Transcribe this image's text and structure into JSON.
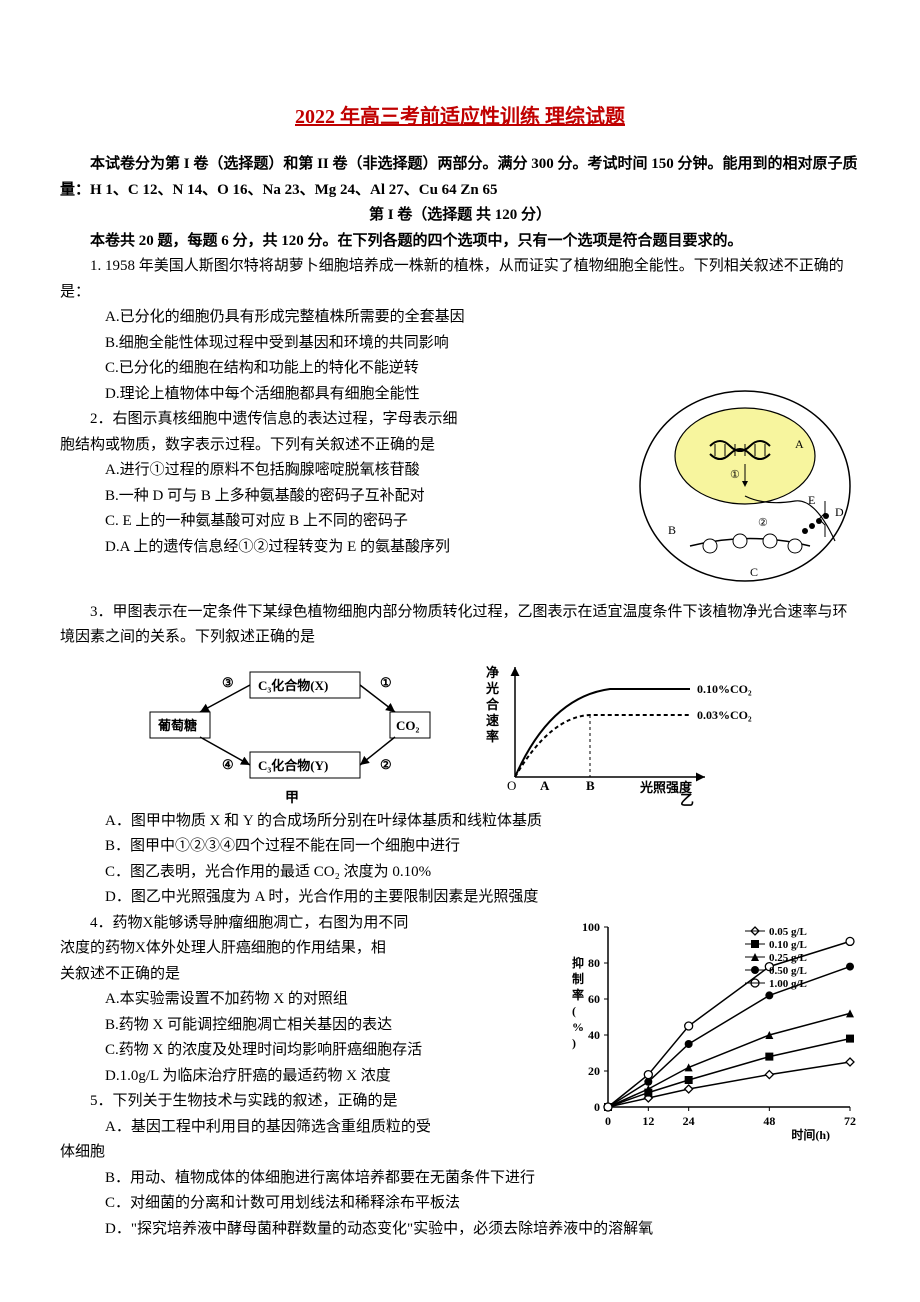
{
  "title": "2022 年高三考前适应性训练 理综试题",
  "intro": "本试卷分为第 I 卷（选择题）和第 II 卷（非选择题）两部分。满分 300 分。考试时间 150 分钟。能用到的相对原子质量：H 1、C 12、N 14、O 16、Na 23、Mg 24、Al 27、Cu 64   Zn 65",
  "subhead": "第 I 卷（选择题   共 120 分）",
  "instr": "本卷共 20 题，每题 6 分，共 120 分。在下列各题的四个选项中，只有一个选项是符合题目要求的。",
  "q1": {
    "stem": "1. 1958 年美国人斯图尔特将胡萝卜细胞培养成一株新的植株，从而证实了植物细胞全能性。下列相关叙述不正确的是：",
    "A": "A.已分化的细胞仍具有形成完整植株所需要的全套基因",
    "B": "B.细胞全能性体现过程中受到基因和环境的共同影响",
    "C": "C.已分化的细胞在结构和功能上的特化不能逆转",
    "D": "D.理论上植物体中每个活细胞都具有细胞全能性"
  },
  "q2": {
    "stem1": "2．右图示真核细胞中遗传信息的表达过程，字母表示细",
    "stem2": "胞结构或物质，数字表示过程。下列有关叙述不正确的是",
    "A": "A.进行①过程的原料不包括胸腺嘧啶脱氧核苷酸",
    "B": "B.一种 D 可与 B 上多种氨基酸的密码子互补配对",
    "C": "C. E 上的一种氨基酸可对应 B 上不同的密码子",
    "D": "D.A 上的遗传信息经①②过程转变为 E 的氨基酸序列"
  },
  "q3": {
    "stem": "3．甲图表示在一定条件下某绿色植物细胞内部分物质转化过程，乙图表示在适宜温度条件下该植物净光合速率与环境因素之间的关系。下列叙述正确的是",
    "A": "A．图甲中物质 X 和 Y 的合成场所分别在叶绿体基质和线粒体基质",
    "B": "B．图甲中①②③④四个过程不能在同一个细胞中进行",
    "C": "C．图乙表明，光合作用的最适 CO₂ 浓度为 0.10%",
    "D": "D．图乙中光照强度为 A 时，光合作用的主要限制因素是光照强度",
    "fig_jia": {
      "boxes": [
        "葡萄糖",
        "C₃化合物(X)",
        "C₃化合物(Y)",
        "CO₂"
      ],
      "arrows": [
        "③",
        "①",
        "④",
        "②"
      ],
      "caption": "甲"
    },
    "fig_yi": {
      "ylabel": "净光合速率",
      "xlabel": "光照强度",
      "xticks": [
        "A",
        "B"
      ],
      "series": [
        "0.10%CO₂",
        "0.03%CO₂"
      ],
      "caption": "乙"
    }
  },
  "q4": {
    "stem1": "4．药物X能够诱导肿瘤细胞凋亡，右图为用不同",
    "stem2": "浓度的药物X体外处理人肝癌细胞的作用结果，相",
    "stem3": "关叙述不正确的是",
    "A": "A.本实验需设置不加药物 X 的对照组",
    "B": "B.药物 X 可能调控细胞凋亡相关基因的表达",
    "C": "C.药物 X 的浓度及处理时间均影响肝癌细胞存活",
    "D": "D.1.0g/L 为临床治疗肝癌的最适药物 X 浓度",
    "chart": {
      "type": "line",
      "xlabel": "时间(h)",
      "ylabel": "抑制率(%)",
      "xticks": [
        0,
        12,
        24,
        48,
        72
      ],
      "yticks": [
        0,
        20,
        40,
        60,
        80,
        100
      ],
      "xlim": [
        0,
        72
      ],
      "ylim": [
        0,
        100
      ],
      "legend_pos": "top-right",
      "background": "#ffffff",
      "axis_color": "#000000",
      "series": [
        {
          "name": "0.05 g/L",
          "marker": "diamond-open",
          "color": "#000000",
          "data": [
            [
              0,
              0
            ],
            [
              12,
              5
            ],
            [
              24,
              10
            ],
            [
              48,
              18
            ],
            [
              72,
              25
            ]
          ]
        },
        {
          "name": "0.10 g/L",
          "marker": "square",
          "color": "#000000",
          "data": [
            [
              0,
              0
            ],
            [
              12,
              8
            ],
            [
              24,
              15
            ],
            [
              48,
              28
            ],
            [
              72,
              38
            ]
          ]
        },
        {
          "name": "0.25 g/L",
          "marker": "triangle",
          "color": "#000000",
          "data": [
            [
              0,
              0
            ],
            [
              12,
              10
            ],
            [
              24,
              22
            ],
            [
              48,
              40
            ],
            [
              72,
              52
            ]
          ]
        },
        {
          "name": "0.50 g/L",
          "marker": "circle",
          "color": "#000000",
          "data": [
            [
              0,
              0
            ],
            [
              12,
              14
            ],
            [
              24,
              35
            ],
            [
              48,
              62
            ],
            [
              72,
              78
            ]
          ]
        },
        {
          "name": "1.00 g/L",
          "marker": "circle-open",
          "color": "#000000",
          "data": [
            [
              0,
              0
            ],
            [
              12,
              18
            ],
            [
              24,
              45
            ],
            [
              48,
              78
            ],
            [
              72,
              92
            ]
          ]
        }
      ]
    }
  },
  "q5": {
    "stem": "5．下列关于生物技术与实践的叙述，正确的是",
    "A1": "A．基因工程中利用目的基因筛选含重组质粒的受",
    "A2": "体细胞",
    "B": "B．用动、植物成体的体细胞进行离体培养都要在无菌条件下进行",
    "C": "C．对细菌的分离和计数可用划线法和稀释涂布平板法",
    "D": "D．\"探究培养液中酵母菌种群数量的动态变化\"实验中，必须去除培养液中的溶解氧"
  },
  "fig2": {
    "labels": [
      "A",
      "B",
      "C",
      "D",
      "E"
    ],
    "nums": [
      "①",
      "②"
    ],
    "nucleus_fill": "#f7f59e",
    "stroke": "#000000"
  }
}
